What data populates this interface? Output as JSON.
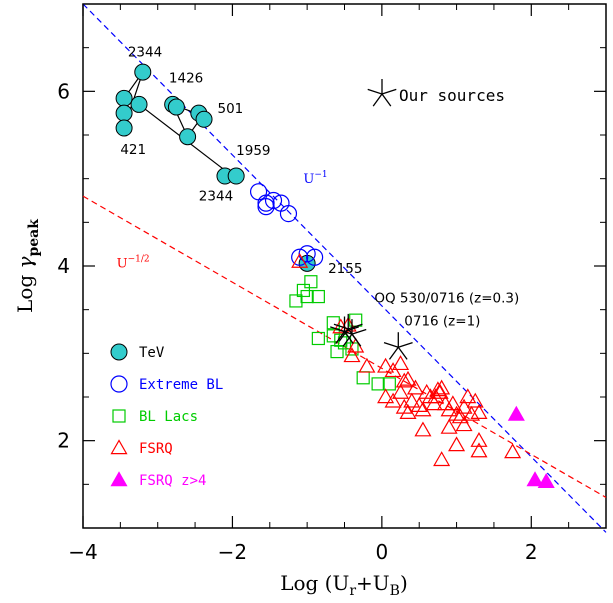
{
  "chart_data": {
    "type": "scatter",
    "title": "",
    "xlabel": "Log (U_r+U_B)",
    "ylabel": "Log γ_peak",
    "xlabel_parts": {
      "main": "Log (U",
      "sub1": "r",
      "plus": "+U",
      "sub2": "B",
      "close": ")"
    },
    "ylabel_parts": {
      "main": "Log ",
      "greek": "γ",
      "sub": "peak"
    },
    "xlim": [
      -4,
      3
    ],
    "ylim": [
      1,
      7
    ],
    "xticks": [
      -4,
      -2,
      0,
      2
    ],
    "xtick_labels": [
      "−4",
      "−2",
      "0",
      "2"
    ],
    "yticks": [
      2,
      4,
      6
    ],
    "ytick_labels": [
      "2",
      "4",
      "6"
    ],
    "grid": false,
    "legend_position": "bottom-left",
    "colors": {
      "tev": "#33cccc",
      "extreme": "#0000ff",
      "bllac": "#00cc00",
      "fsrq": "#ff0000",
      "fsrq_z4": "#ff00ff",
      "ours": "#000000",
      "line_u1": "#0000ff",
      "line_u12": "#ff0000"
    },
    "lines": [
      {
        "name": "U^-1",
        "label_main": "U",
        "label_sup": "−1",
        "color": "#0000ff",
        "x": [
          -4,
          3
        ],
        "y": [
          7.0,
          0.95
        ],
        "label_x": -1.05,
        "label_y": 4.95
      },
      {
        "name": "U^-1/2",
        "label_main": "U",
        "label_sup": "−1/2",
        "color": "#ff0000",
        "x": [
          -4,
          3
        ],
        "y": [
          4.8,
          1.35
        ],
        "label_x": -3.55,
        "label_y": 3.98
      }
    ],
    "series": [
      {
        "name": "TeV",
        "marker": "filled-circle",
        "color": "#33cccc",
        "points": [
          [
            -3.2,
            6.22
          ],
          [
            -3.45,
            5.92
          ],
          [
            -3.25,
            5.85
          ],
          [
            -3.45,
            5.75
          ],
          [
            -3.45,
            5.58
          ],
          [
            -2.8,
            5.85
          ],
          [
            -2.75,
            5.82
          ],
          [
            -2.45,
            5.75
          ],
          [
            -2.38,
            5.68
          ],
          [
            -2.6,
            5.48
          ],
          [
            -2.1,
            5.03
          ],
          [
            -1.95,
            5.03
          ],
          [
            -1.0,
            4.03
          ]
        ]
      },
      {
        "name": "Extreme BL",
        "marker": "open-circle",
        "color": "#0000ff",
        "points": [
          [
            -1.65,
            4.85
          ],
          [
            -1.55,
            4.72
          ],
          [
            -1.45,
            4.75
          ],
          [
            -1.35,
            4.72
          ],
          [
            -1.25,
            4.6
          ],
          [
            -1.55,
            4.68
          ],
          [
            -1.0,
            4.14
          ],
          [
            -0.9,
            4.1
          ],
          [
            -1.1,
            4.1
          ]
        ]
      },
      {
        "name": "BL Lacs",
        "marker": "open-square",
        "color": "#00cc00",
        "points": [
          [
            -0.95,
            3.82
          ],
          [
            -0.85,
            3.65
          ],
          [
            -1.0,
            3.65
          ],
          [
            -1.05,
            3.72
          ],
          [
            -1.15,
            3.6
          ],
          [
            -0.85,
            3.17
          ],
          [
            -0.55,
            3.15
          ],
          [
            -0.35,
            3.38
          ],
          [
            -0.6,
            3.02
          ],
          [
            -0.4,
            3.05
          ],
          [
            -0.65,
            3.2
          ],
          [
            -0.5,
            3.12
          ],
          [
            -0.65,
            3.35
          ],
          [
            -0.25,
            2.72
          ],
          [
            -0.05,
            2.65
          ],
          [
            0.1,
            2.65
          ]
        ]
      },
      {
        "name": "FSRQ",
        "marker": "open-triangle",
        "color": "#ff0000",
        "points": [
          [
            -1.1,
            4.05
          ],
          [
            -0.55,
            3.3
          ],
          [
            -0.45,
            3.32
          ],
          [
            -0.35,
            3.08
          ],
          [
            -0.4,
            2.97
          ],
          [
            -0.2,
            2.85
          ],
          [
            0.05,
            2.85
          ],
          [
            0.15,
            2.8
          ],
          [
            0.25,
            2.88
          ],
          [
            0.3,
            2.68
          ],
          [
            0.35,
            2.7
          ],
          [
            0.05,
            2.5
          ],
          [
            0.15,
            2.45
          ],
          [
            0.25,
            2.55
          ],
          [
            0.3,
            2.38
          ],
          [
            0.35,
            2.32
          ],
          [
            0.4,
            2.45
          ],
          [
            0.45,
            2.6
          ],
          [
            0.5,
            2.4
          ],
          [
            0.55,
            2.35
          ],
          [
            0.55,
            2.12
          ],
          [
            0.6,
            2.55
          ],
          [
            0.65,
            2.5
          ],
          [
            0.7,
            2.42
          ],
          [
            0.72,
            2.5
          ],
          [
            0.78,
            2.55
          ],
          [
            0.75,
            2.58
          ],
          [
            0.8,
            2.6
          ],
          [
            0.85,
            2.42
          ],
          [
            0.9,
            2.35
          ],
          [
            0.95,
            2.42
          ],
          [
            1.0,
            2.3
          ],
          [
            1.05,
            2.27
          ],
          [
            1.1,
            2.38
          ],
          [
            1.15,
            2.5
          ],
          [
            1.2,
            2.3
          ],
          [
            1.25,
            2.45
          ],
          [
            1.3,
            2.32
          ],
          [
            0.8,
            1.78
          ],
          [
            1.1,
            2.18
          ],
          [
            1.3,
            2.0
          ],
          [
            1.3,
            1.88
          ],
          [
            1.75,
            1.87
          ],
          [
            0.9,
            2.15
          ],
          [
            1.0,
            1.95
          ]
        ]
      },
      {
        "name": "FSRQ z>4",
        "marker": "filled-triangle",
        "color": "#ff00ff",
        "points": [
          [
            1.8,
            2.3
          ],
          [
            2.05,
            1.55
          ],
          [
            2.2,
            1.53
          ]
        ]
      },
      {
        "name": "Our sources",
        "marker": "asterisk",
        "color": "#000000",
        "points": [
          [
            -0.45,
            3.28
          ],
          [
            -0.4,
            3.22
          ],
          [
            -0.5,
            3.25
          ],
          [
            0.22,
            3.07
          ]
        ]
      }
    ],
    "connectors": [
      [
        [
          -3.2,
          6.22
        ],
        [
          -3.45,
          5.92
        ],
        [
          -3.45,
          5.58
        ],
        [
          -3.2,
          6.22
        ]
      ],
      [
        [
          -2.8,
          5.85
        ],
        [
          -2.4,
          5.72
        ],
        [
          -2.6,
          5.48
        ],
        [
          -2.8,
          5.85
        ]
      ],
      [
        [
          -3.25,
          5.85
        ],
        [
          -2.0,
          5.03
        ]
      ]
    ],
    "annotations": [
      {
        "text": "2344",
        "x": -3.4,
        "y": 6.4
      },
      {
        "text": "1426",
        "x": -2.85,
        "y": 6.1
      },
      {
        "text": "501",
        "x": -2.2,
        "y": 5.75
      },
      {
        "text": "421",
        "x": -3.5,
        "y": 5.28
      },
      {
        "text": "1959",
        "x": -1.95,
        "y": 5.27
      },
      {
        "text": "2344",
        "x": -2.45,
        "y": 4.75
      },
      {
        "text": "2155",
        "x": -0.72,
        "y": 3.92
      },
      {
        "text": "OQ 530/0716 (z=0.3)",
        "x": -0.1,
        "y": 3.58
      },
      {
        "text": "0716 (z=1)",
        "x": 0.3,
        "y": 3.32
      }
    ],
    "legend": [
      {
        "label": "TeV",
        "marker": "filled-circle",
        "color": "#33cccc",
        "text_color": "#000000"
      },
      {
        "label": "Extreme BL",
        "marker": "open-circle",
        "color": "#0000ff",
        "text_color": "#0000ff"
      },
      {
        "label": "BL Lacs",
        "marker": "open-square",
        "color": "#00cc00",
        "text_color": "#00cc00"
      },
      {
        "label": "FSRQ",
        "marker": "open-triangle",
        "color": "#ff0000",
        "text_color": "#ff0000"
      },
      {
        "label": "FSRQ z>4",
        "marker": "filled-triangle",
        "color": "#ff00ff",
        "text_color": "#ff00ff"
      }
    ],
    "ours_legend": {
      "label": "Our sources",
      "marker": "asterisk",
      "color": "#000000"
    }
  }
}
